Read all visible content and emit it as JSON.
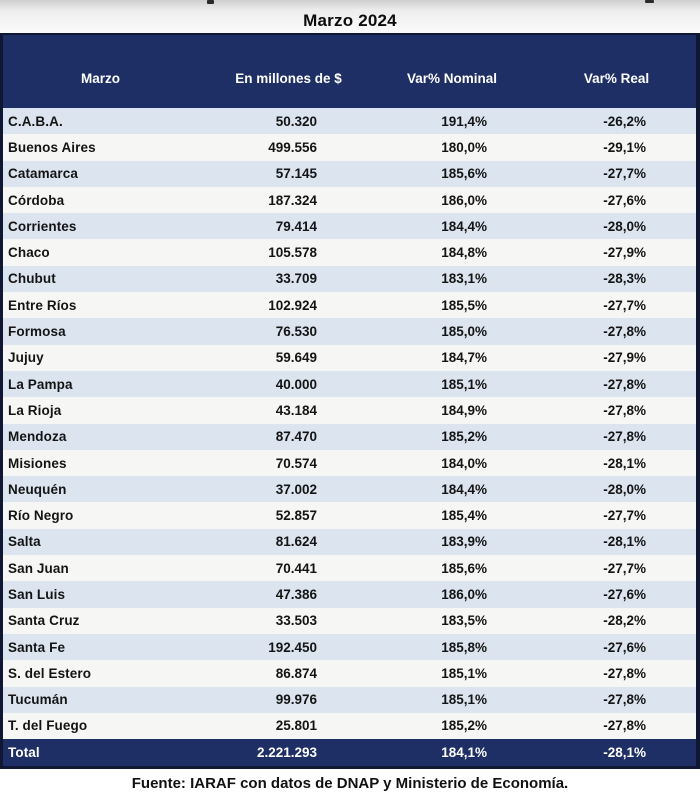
{
  "title": "Marzo 2024",
  "table": {
    "columns": {
      "c1": "Marzo",
      "c2": "En millones de $",
      "c3": "Var% Nominal",
      "c4": "Var% Real"
    },
    "rows": [
      {
        "name": "C.A.B.A.",
        "amount": "50.320",
        "nominal": "191,4%",
        "real": "-26,2%"
      },
      {
        "name": "Buenos Aires",
        "amount": "499.556",
        "nominal": "180,0%",
        "real": "-29,1%"
      },
      {
        "name": "Catamarca",
        "amount": "57.145",
        "nominal": "185,6%",
        "real": "-27,7%"
      },
      {
        "name": "Córdoba",
        "amount": "187.324",
        "nominal": "186,0%",
        "real": "-27,6%"
      },
      {
        "name": "Corrientes",
        "amount": "79.414",
        "nominal": "184,4%",
        "real": "-28,0%"
      },
      {
        "name": "Chaco",
        "amount": "105.578",
        "nominal": "184,8%",
        "real": "-27,9%"
      },
      {
        "name": "Chubut",
        "amount": "33.709",
        "nominal": "183,1%",
        "real": "-28,3%"
      },
      {
        "name": "Entre Ríos",
        "amount": "102.924",
        "nominal": "185,5%",
        "real": "-27,7%"
      },
      {
        "name": "Formosa",
        "amount": "76.530",
        "nominal": "185,0%",
        "real": "-27,8%"
      },
      {
        "name": "Jujuy",
        "amount": "59.649",
        "nominal": "184,7%",
        "real": "-27,9%"
      },
      {
        "name": "La Pampa",
        "amount": "40.000",
        "nominal": "185,1%",
        "real": "-27,8%"
      },
      {
        "name": "La Rioja",
        "amount": "43.184",
        "nominal": "184,9%",
        "real": "-27,8%"
      },
      {
        "name": "Mendoza",
        "amount": "87.470",
        "nominal": "185,2%",
        "real": "-27,8%"
      },
      {
        "name": "Misiones",
        "amount": "70.574",
        "nominal": "184,0%",
        "real": "-28,1%"
      },
      {
        "name": "Neuquén",
        "amount": "37.002",
        "nominal": "184,4%",
        "real": "-28,0%"
      },
      {
        "name": "Río Negro",
        "amount": "52.857",
        "nominal": "185,4%",
        "real": "-27,7%"
      },
      {
        "name": "Salta",
        "amount": "81.624",
        "nominal": "183,9%",
        "real": "-28,1%"
      },
      {
        "name": "San Juan",
        "amount": "70.441",
        "nominal": "185,6%",
        "real": "-27,7%"
      },
      {
        "name": "San Luis",
        "amount": "47.386",
        "nominal": "186,0%",
        "real": "-27,6%"
      },
      {
        "name": "Santa Cruz",
        "amount": "33.503",
        "nominal": "183,5%",
        "real": "-28,2%"
      },
      {
        "name": "Santa Fe",
        "amount": "192.450",
        "nominal": "185,8%",
        "real": "-27,6%"
      },
      {
        "name": "S. del Estero",
        "amount": "86.874",
        "nominal": "185,1%",
        "real": "-27,8%"
      },
      {
        "name": "Tucumán",
        "amount": "99.976",
        "nominal": "185,1%",
        "real": "-27,8%"
      },
      {
        "name": "T. del Fuego",
        "amount": "25.801",
        "nominal": "185,2%",
        "real": "-27,8%"
      }
    ],
    "total": {
      "name": "Total",
      "amount": "2.221.293",
      "nominal": "184,1%",
      "real": "-28,1%"
    }
  },
  "footer": "Fuente: IARAF con datos de DNAP y Ministerio de Economía.",
  "colors": {
    "header_navy": "#1e2f66",
    "row_blue": "#dce4f0",
    "row_white": "#f6f6f4",
    "border": "#0f1733",
    "header_text": "#ffffff",
    "body_text": "#141414"
  },
  "chart_data": {
    "type": "table",
    "title": "Marzo 2024",
    "columns": [
      "Marzo",
      "En millones de $",
      "Var% Nominal",
      "Var% Real"
    ],
    "rows": [
      [
        "C.A.B.A.",
        "50.320",
        "191,4%",
        "-26,2%"
      ],
      [
        "Buenos Aires",
        "499.556",
        "180,0%",
        "-29,1%"
      ],
      [
        "Catamarca",
        "57.145",
        "185,6%",
        "-27,7%"
      ],
      [
        "Córdoba",
        "187.324",
        "186,0%",
        "-27,6%"
      ],
      [
        "Corrientes",
        "79.414",
        "184,4%",
        "-28,0%"
      ],
      [
        "Chaco",
        "105.578",
        "184,8%",
        "-27,9%"
      ],
      [
        "Chubut",
        "33.709",
        "183,1%",
        "-28,3%"
      ],
      [
        "Entre Ríos",
        "102.924",
        "185,5%",
        "-27,7%"
      ],
      [
        "Formosa",
        "76.530",
        "185,0%",
        "-27,8%"
      ],
      [
        "Jujuy",
        "59.649",
        "184,7%",
        "-27,9%"
      ],
      [
        "La Pampa",
        "40.000",
        "185,1%",
        "-27,8%"
      ],
      [
        "La Rioja",
        "43.184",
        "184,9%",
        "-27,8%"
      ],
      [
        "Mendoza",
        "87.470",
        "185,2%",
        "-27,8%"
      ],
      [
        "Misiones",
        "70.574",
        "184,0%",
        "-28,1%"
      ],
      [
        "Neuquén",
        "37.002",
        "184,4%",
        "-28,0%"
      ],
      [
        "Río Negro",
        "52.857",
        "185,4%",
        "-27,7%"
      ],
      [
        "Salta",
        "81.624",
        "183,9%",
        "-28,1%"
      ],
      [
        "San Juan",
        "70.441",
        "185,6%",
        "-27,7%"
      ],
      [
        "San Luis",
        "47.386",
        "186,0%",
        "-27,6%"
      ],
      [
        "Santa Cruz",
        "33.503",
        "183,5%",
        "-28,2%"
      ],
      [
        "Santa Fe",
        "192.450",
        "185,8%",
        "-27,6%"
      ],
      [
        "S. del Estero",
        "86.874",
        "185,1%",
        "-27,8%"
      ],
      [
        "Tucumán",
        "99.976",
        "185,1%",
        "-27,8%"
      ],
      [
        "T. del Fuego",
        "25.801",
        "185,2%",
        "-27,8%"
      ]
    ],
    "total_row": [
      "Total",
      "2.221.293",
      "184,1%",
      "-28,1%"
    ],
    "source": "Fuente: IARAF con datos de DNAP y Ministerio de Economía."
  }
}
